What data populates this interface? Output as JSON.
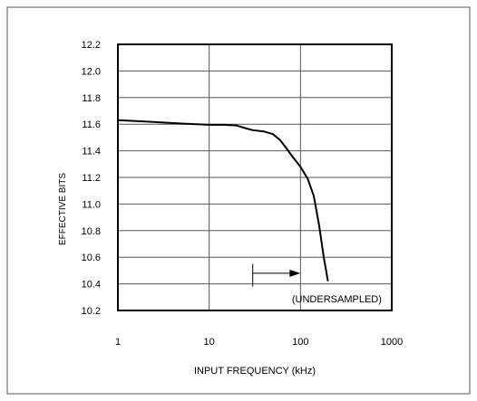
{
  "chart_data": {
    "type": "line",
    "xlabel": "INPUT FREQUENCY (kHz)",
    "ylabel": "EFFECTIVE BITS",
    "xscale": "log",
    "xlim": [
      1,
      1000
    ],
    "ylim": [
      10.2,
      12.2
    ],
    "grid": true,
    "xticks": [
      1,
      10,
      100,
      1000
    ],
    "xtick_labels": [
      "1",
      "10",
      "100",
      "1000"
    ],
    "yticks": [
      10.2,
      10.4,
      10.6,
      10.8,
      11.0,
      11.2,
      11.4,
      11.6,
      11.8,
      12.0,
      12.2
    ],
    "ytick_labels": [
      "10.2",
      "10.4",
      "10.6",
      "10.8",
      "11.0",
      "11.2",
      "11.4",
      "11.6",
      "11.8",
      "12.0",
      "12.2"
    ],
    "series": [
      {
        "x": [
          1,
          2,
          5,
          10,
          15,
          20,
          25,
          30,
          40,
          50,
          60,
          70,
          80,
          100,
          120,
          140,
          160,
          180,
          200
        ],
        "y": [
          11.63,
          11.62,
          11.605,
          11.595,
          11.595,
          11.59,
          11.57,
          11.555,
          11.545,
          11.525,
          11.48,
          11.42,
          11.365,
          11.28,
          11.19,
          11.06,
          10.84,
          10.6,
          10.42
        ]
      }
    ],
    "annotations": [
      {
        "text": "(UNDERSAMPLED)",
        "x": 250,
        "y": 10.29
      }
    ],
    "arrow": {
      "x_start": 30,
      "x_end": 100,
      "y": 10.48,
      "marker_top": 10.55,
      "marker_bottom": 10.38
    }
  }
}
